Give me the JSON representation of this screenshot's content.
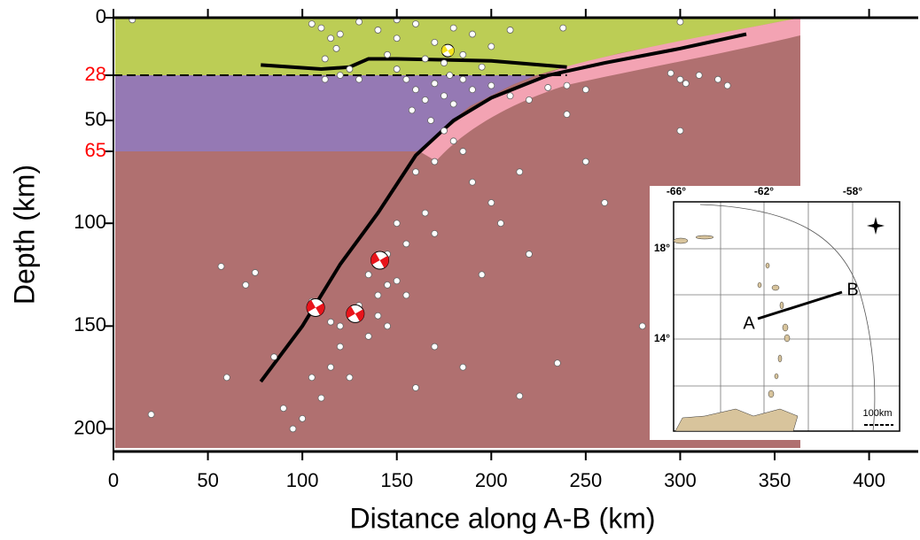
{
  "chart_data": {
    "type": "scatter",
    "xlabel": "Distance along A-B (km)",
    "ylabel": "Depth (km)",
    "xlim": [
      0,
      426
    ],
    "ylim": [
      0,
      211
    ],
    "y_inverted": true,
    "xticks": [
      0,
      50,
      100,
      150,
      200,
      250,
      300,
      350,
      400
    ],
    "yticks": [
      0,
      50,
      100,
      150,
      200
    ],
    "layer_boundaries": [
      28,
      65
    ],
    "layer_boundary_color": "#ff0000",
    "series": [
      {
        "color": "#ffffff",
        "x": [
          110,
          115,
          118,
          112,
          105,
          120,
          125,
          130,
          140,
          150,
          160,
          170,
          180,
          190,
          200,
          210,
          150,
          165,
          175,
          185,
          195,
          145,
          10,
          150,
          300,
          238,
          155,
          160,
          165,
          170,
          175,
          180,
          185,
          190,
          158,
          168,
          178,
          200,
          210,
          220,
          230,
          240,
          250,
          112,
          120,
          130,
          295,
          300,
          303,
          310,
          320,
          325,
          175,
          180,
          185,
          170,
          160,
          190,
          200,
          205,
          165,
          170,
          150,
          155,
          145,
          140,
          135,
          145,
          150,
          155,
          140,
          130,
          125,
          120,
          115,
          110,
          105,
          140,
          145,
          135,
          120,
          115,
          125,
          110,
          100,
          95,
          90,
          20,
          60,
          85,
          220,
          235,
          215,
          280,
          70,
          57,
          75,
          185,
          160,
          250,
          260,
          300,
          240,
          215,
          195,
          170,
          105
        ],
        "y": [
          5,
          10,
          15,
          20,
          3,
          8,
          25,
          2,
          6,
          10,
          3,
          12,
          5,
          8,
          14,
          6,
          25,
          20,
          22,
          18,
          24,
          18,
          1,
          1,
          2,
          5,
          30,
          35,
          40,
          32,
          38,
          42,
          30,
          35,
          45,
          50,
          28,
          33,
          38,
          40,
          34,
          33,
          35,
          30,
          28,
          30,
          27,
          30,
          32,
          28,
          30,
          33,
          55,
          60,
          65,
          70,
          75,
          80,
          90,
          100,
          95,
          105,
          100,
          110,
          115,
          120,
          125,
          130,
          128,
          135,
          135,
          140,
          145,
          150,
          148,
          140,
          138,
          145,
          150,
          155,
          160,
          170,
          175,
          185,
          195,
          200,
          190,
          193,
          175,
          165,
          115,
          168,
          184,
          150,
          130,
          121,
          124,
          170,
          180,
          70,
          90,
          55,
          47,
          75,
          125,
          160,
          175
        ]
      }
    ],
    "lines": [
      {
        "color": "#000000",
        "x": [
          78,
          100,
          120,
          140,
          160,
          180,
          200,
          230,
          260,
          300,
          335
        ],
        "y": [
          177,
          150,
          120,
          95,
          67,
          50,
          39,
          28,
          22,
          15,
          8
        ]
      },
      {
        "color": "#000000",
        "x": [
          78,
          110,
          125,
          135,
          150,
          200,
          240
        ],
        "y": [
          23,
          25,
          24,
          20,
          20,
          21,
          24
        ]
      }
    ],
    "focal_mechanisms": {
      "x": [
        107,
        128,
        141,
        177
      ],
      "y": [
        141,
        144,
        118,
        16
      ],
      "colors": [
        "#e8141b",
        "#e8141b",
        "#e8141b",
        "#f4e21c"
      ]
    },
    "inset": {
      "lon_labels": [
        "-66°",
        "-62°",
        "-58°"
      ],
      "lat_labels": [
        "18°",
        "14°"
      ],
      "point_labels": [
        "A",
        "B"
      ],
      "scale_label": "100km"
    }
  }
}
